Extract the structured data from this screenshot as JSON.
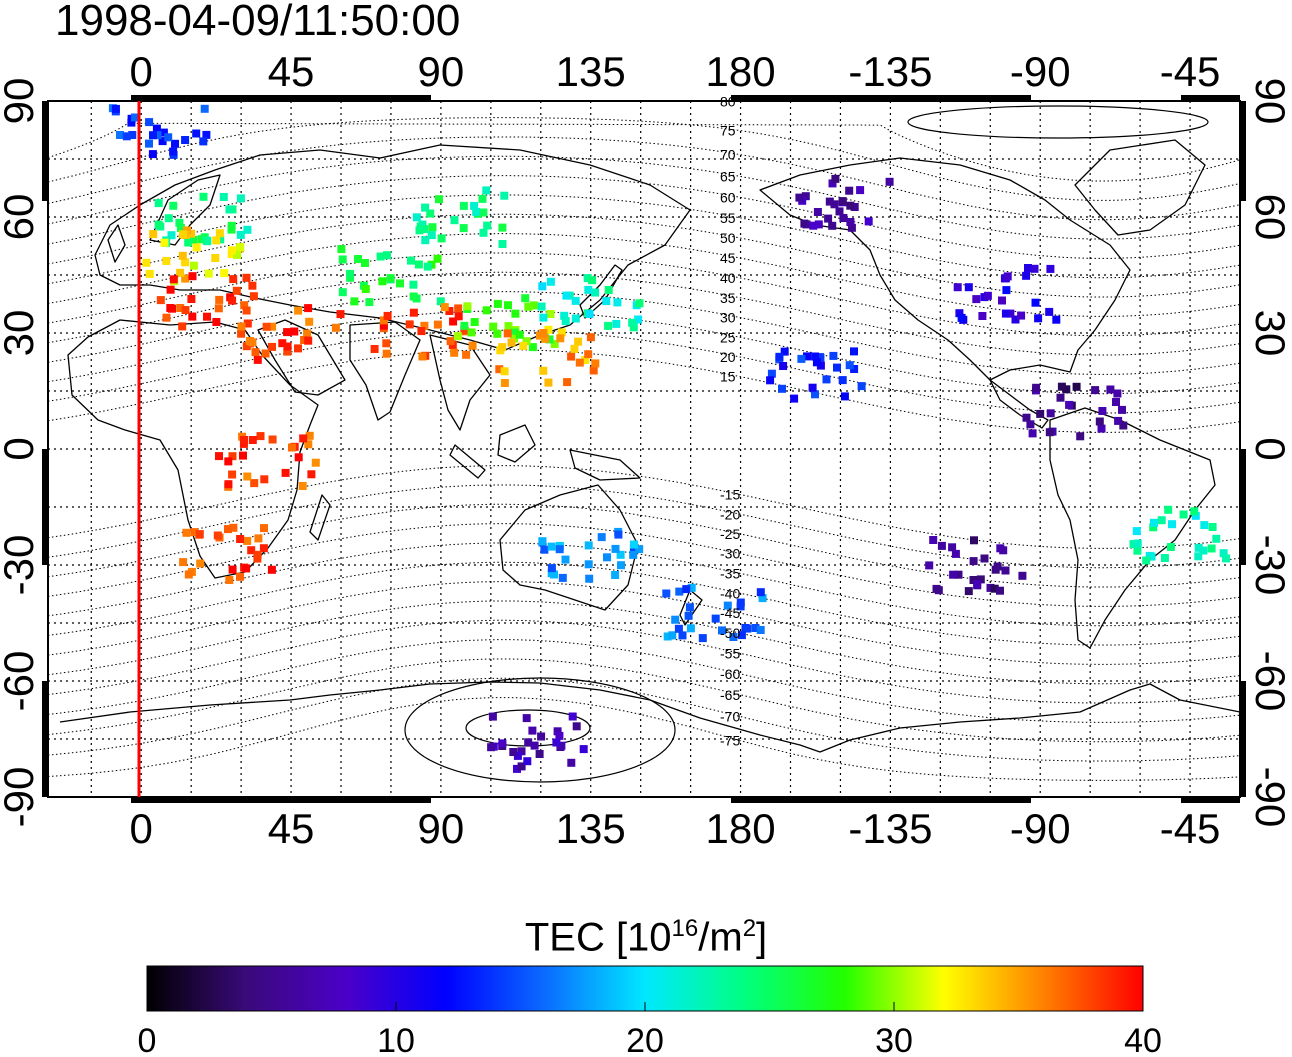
{
  "title": "1998-04-09/11:50:00",
  "colorbar": {
    "title_prefix": "TEC  [10",
    "title_exp1": "16",
    "title_mid": "/m",
    "title_exp2": "2",
    "title_suffix": "]",
    "range": [
      0,
      40
    ],
    "ticks": [
      "0",
      "10",
      "20",
      "30",
      "40"
    ],
    "colormap": [
      "#000000",
      "#3a0a7a",
      "#4b00c8",
      "#0000ff",
      "#0a6cff",
      "#00e8ff",
      "#00ff80",
      "#22ff00",
      "#ffff00",
      "#ff8000",
      "#ff0000"
    ]
  },
  "map": {
    "lon_ticks_top": [
      "0",
      "45",
      "90",
      "135",
      "180",
      "-135",
      "-90",
      "-45"
    ],
    "lon_ticks_bottom": [
      "0",
      "45",
      "90",
      "135",
      "180",
      "-135",
      "-90",
      "-45"
    ],
    "lat_ticks": [
      "90",
      "60",
      "30",
      "0",
      "-30",
      "-60",
      "-90"
    ],
    "magnetic_lat_labels": [
      "80",
      "75",
      "70",
      "65",
      "60",
      "55",
      "50",
      "45",
      "40",
      "35",
      "30",
      "25",
      "20",
      "15",
      "-15",
      "-20",
      "-25",
      "-30",
      "-35",
      "-40",
      "-45",
      "-50",
      "-55",
      "-60",
      "-65",
      "-70",
      "-75"
    ],
    "terminator_color": "#ff0000",
    "tec_clusters": [
      {
        "region": "arctic-europe",
        "lon": 5,
        "lat": 82,
        "tec": 14
      },
      {
        "region": "northern-europe",
        "lon": 20,
        "lat": 60,
        "tec": 24
      },
      {
        "region": "europe",
        "lon": 15,
        "lat": 50,
        "tec": 33
      },
      {
        "region": "mediterranean",
        "lon": 20,
        "lat": 38,
        "tec": 39
      },
      {
        "region": "middle-east",
        "lon": 45,
        "lat": 30,
        "tec": 38
      },
      {
        "region": "central-asia",
        "lon": 75,
        "lat": 45,
        "tec": 26
      },
      {
        "region": "siberia",
        "lon": 95,
        "lat": 60,
        "tec": 24
      },
      {
        "region": "india",
        "lon": 85,
        "lat": 30,
        "tec": 38
      },
      {
        "region": "china",
        "lon": 110,
        "lat": 33,
        "tec": 28
      },
      {
        "region": "japan",
        "lon": 135,
        "lat": 38,
        "tec": 22
      },
      {
        "region": "taiwan",
        "lon": 122,
        "lat": 24,
        "tec": 35
      },
      {
        "region": "east-africa",
        "lon": 38,
        "lat": -3,
        "tec": 38
      },
      {
        "region": "south-africa",
        "lon": 27,
        "lat": -27,
        "tec": 38
      },
      {
        "region": "australia",
        "lon": 135,
        "lat": -28,
        "tec": 17
      },
      {
        "region": "new-zealand",
        "lon": 172,
        "lat": -42,
        "tec": 16
      },
      {
        "region": "antarctica",
        "lon": 120,
        "lat": -76,
        "tec": 7
      },
      {
        "region": "alaska",
        "lon": -150,
        "lat": 63,
        "tec": 6
      },
      {
        "region": "north-america",
        "lon": -100,
        "lat": 40,
        "tec": 10
      },
      {
        "region": "hawaii",
        "lon": -157,
        "lat": 20,
        "tec": 13
      },
      {
        "region": "central-america",
        "lon": -80,
        "lat": 10,
        "tec": 5
      },
      {
        "region": "south-america",
        "lon": -47,
        "lat": -22,
        "tec": 22
      },
      {
        "region": "pacific-south",
        "lon": -110,
        "lat": -30,
        "tec": 5
      }
    ]
  }
}
